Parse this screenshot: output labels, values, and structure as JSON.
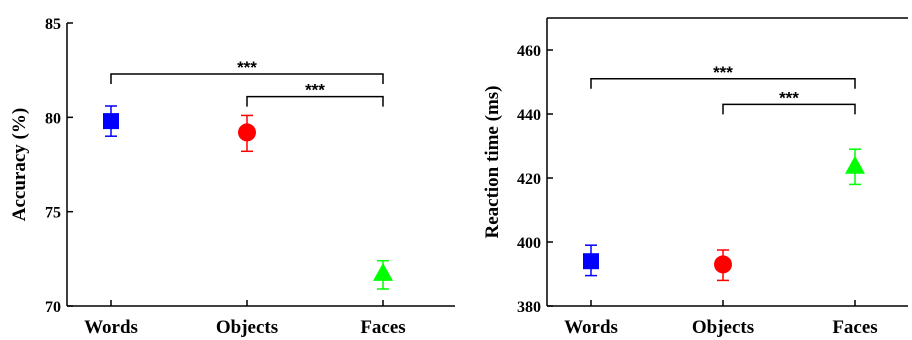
{
  "chart_data": [
    {
      "type": "scatter",
      "ylabel": "Accuracy (%)",
      "categories": [
        "Words",
        "Objects",
        "Faces"
      ],
      "ylim": [
        70,
        85
      ],
      "yticks": [
        70,
        75,
        80,
        85
      ],
      "points": [
        {
          "category": "Words",
          "value": 79.8,
          "err_low": 79.0,
          "err_high": 80.6,
          "color": "#0000ff",
          "marker": "square"
        },
        {
          "category": "Objects",
          "value": 79.2,
          "err_low": 78.2,
          "err_high": 80.1,
          "color": "#ff0000",
          "marker": "circle"
        },
        {
          "category": "Faces",
          "value": 71.7,
          "err_low": 70.9,
          "err_high": 72.4,
          "color": "#00ff00",
          "marker": "triangle"
        }
      ],
      "significance": [
        {
          "from": "Words",
          "to": "Faces",
          "label": "***",
          "y": 82.3
        },
        {
          "from": "Objects",
          "to": "Faces",
          "label": "***",
          "y": 81.1
        }
      ]
    },
    {
      "type": "scatter",
      "ylabel": "Reaction time (ms)",
      "categories": [
        "Words",
        "Objects",
        "Faces"
      ],
      "ylim": [
        380,
        470
      ],
      "yticks": [
        380,
        400,
        420,
        440,
        460
      ],
      "points": [
        {
          "category": "Words",
          "value": 394,
          "err_low": 389.5,
          "err_high": 399,
          "color": "#0000ff",
          "marker": "square"
        },
        {
          "category": "Objects",
          "value": 393,
          "err_low": 388,
          "err_high": 397.5,
          "color": "#ff0000",
          "marker": "circle"
        },
        {
          "category": "Faces",
          "value": 423.5,
          "err_low": 418,
          "err_high": 429,
          "color": "#00ff00",
          "marker": "triangle"
        }
      ],
      "significance": [
        {
          "from": "Words",
          "to": "Faces",
          "label": "***",
          "y": 451
        },
        {
          "from": "Objects",
          "to": "Faces",
          "label": "***",
          "y": 443
        }
      ]
    }
  ]
}
